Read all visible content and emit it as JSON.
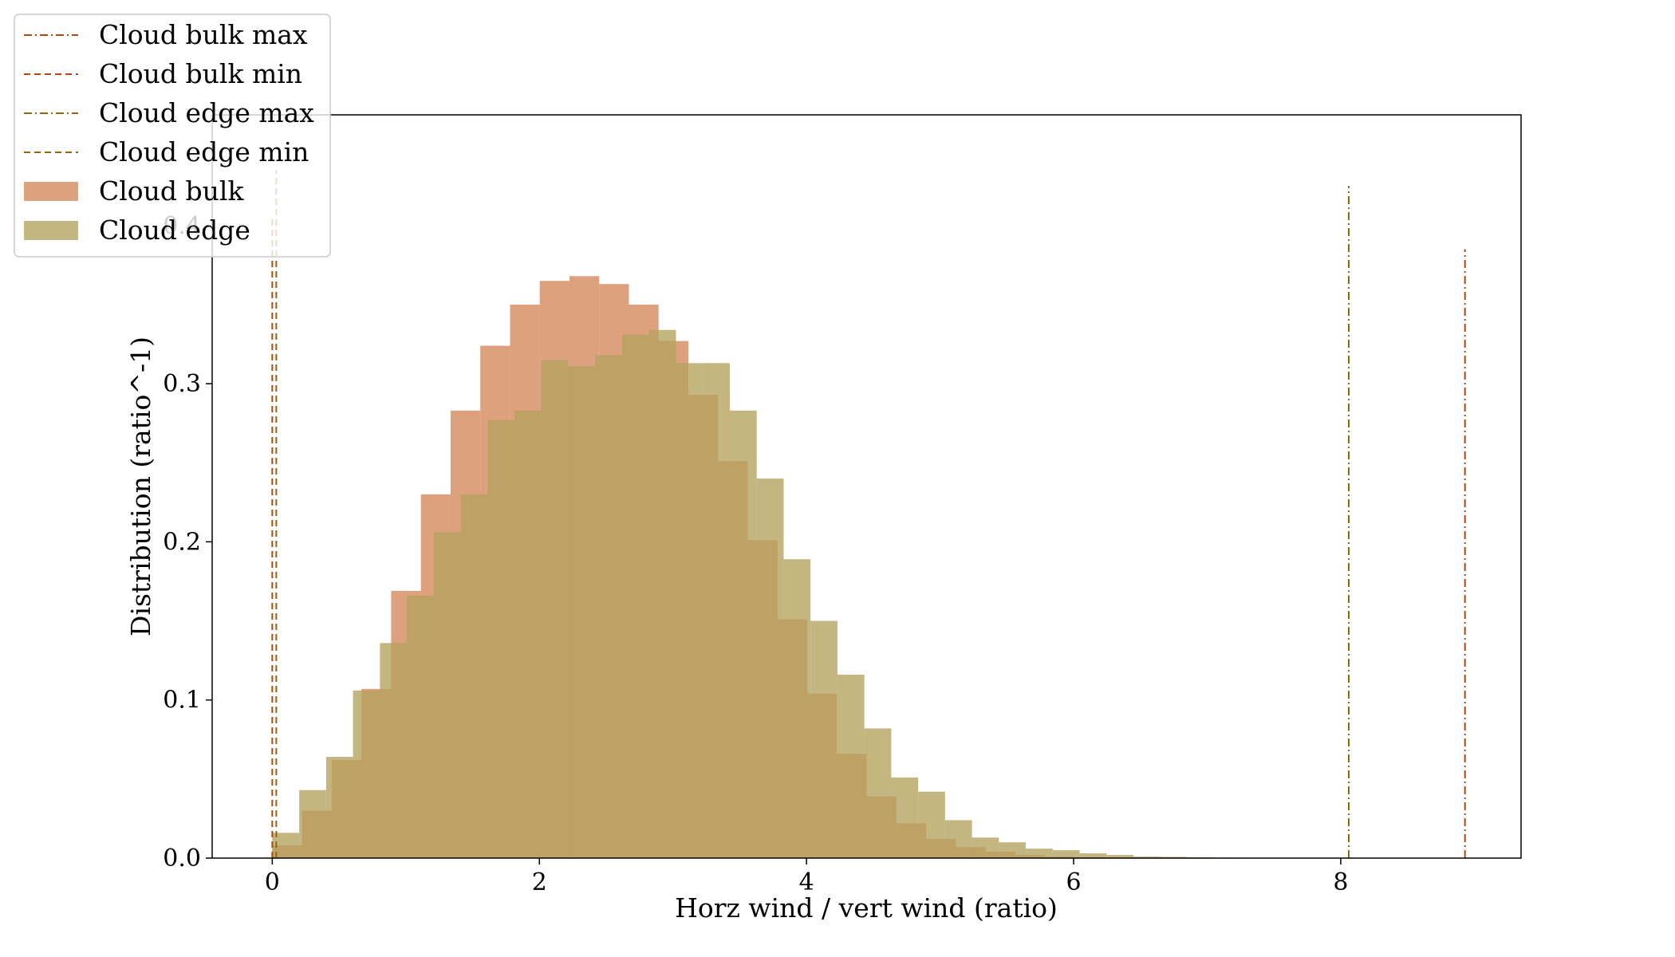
{
  "chart_data": {
    "type": "bar",
    "xlabel": "Horz wind / vert wind (ratio)",
    "ylabel": "Distribution (ratio^-1)",
    "xlim": [
      -0.45,
      9.35
    ],
    "ylim": [
      0.0,
      0.47
    ],
    "xticks": [
      0,
      2,
      4,
      6,
      8
    ],
    "yticks": [
      0.0,
      0.1,
      0.2,
      0.3,
      0.4
    ],
    "xtick_labels": [
      "0",
      "2",
      "4",
      "6",
      "8"
    ],
    "ytick_labels": [
      "0.0",
      "0.1",
      "0.2",
      "0.3",
      "0.4"
    ],
    "grid": false,
    "legend_position": "upper left, outside axes",
    "histograms": [
      {
        "name": "Cloud bulk",
        "color": "#d4875a",
        "opacity": 0.78,
        "start": 0.0,
        "bin_width": 0.2225,
        "values": [
          0.008,
          0.03,
          0.062,
          0.107,
          0.169,
          0.23,
          0.283,
          0.324,
          0.35,
          0.365,
          0.368,
          0.363,
          0.35,
          0.327,
          0.293,
          0.251,
          0.201,
          0.151,
          0.104,
          0.066,
          0.039,
          0.022,
          0.012,
          0.007,
          0.004,
          0.002,
          0.001,
          0.0006,
          0.0003,
          0.0002,
          0.0001,
          5e-05,
          0.0,
          0.0,
          0.0,
          0.0,
          0.0,
          0.0,
          0.0,
          0.0
        ]
      },
      {
        "name": "Cloud edge",
        "color": "#b3a25e",
        "opacity": 0.78,
        "start": 0.0,
        "bin_width": 0.2015,
        "values": [
          0.016,
          0.043,
          0.064,
          0.106,
          0.136,
          0.166,
          0.206,
          0.23,
          0.277,
          0.283,
          0.315,
          0.311,
          0.318,
          0.331,
          0.334,
          0.313,
          0.313,
          0.283,
          0.24,
          0.189,
          0.15,
          0.116,
          0.082,
          0.051,
          0.042,
          0.024,
          0.013,
          0.01,
          0.006,
          0.005,
          0.003,
          0.002,
          0.001,
          0.0008,
          0.0005,
          0.0003,
          0.0002,
          0.0001,
          0.0,
          0.0
        ]
      }
    ],
    "vlines": [
      {
        "name": "Cloud bulk max",
        "x": 8.93,
        "ymax": 0.385,
        "style": "dashdot",
        "color": "#b3460f"
      },
      {
        "name": "Cloud bulk min",
        "x": 0.0,
        "ymax": 0.405,
        "style": "dashed",
        "color": "#b3460f"
      },
      {
        "name": "Cloud edge max",
        "x": 8.06,
        "ymax": 0.425,
        "style": "dashdot",
        "color": "#8a6a0a"
      },
      {
        "name": "Cloud edge min",
        "x": 0.03,
        "ymax": 0.435,
        "style": "dashed",
        "color": "#8a6a0a"
      }
    ],
    "legend": [
      {
        "label": "Cloud bulk max",
        "kind": "line",
        "style": "dashdot",
        "color": "#b3460f"
      },
      {
        "label": "Cloud bulk min",
        "kind": "line",
        "style": "dashed",
        "color": "#b3460f"
      },
      {
        "label": "Cloud edge max",
        "kind": "line",
        "style": "dashdot",
        "color": "#8a6a0a"
      },
      {
        "label": "Cloud edge min",
        "kind": "line",
        "style": "dashed",
        "color": "#8a6a0a"
      },
      {
        "label": "Cloud bulk",
        "kind": "patch",
        "color": "#d4875a"
      },
      {
        "label": "Cloud edge",
        "kind": "patch",
        "color": "#b3a25e"
      }
    ]
  }
}
